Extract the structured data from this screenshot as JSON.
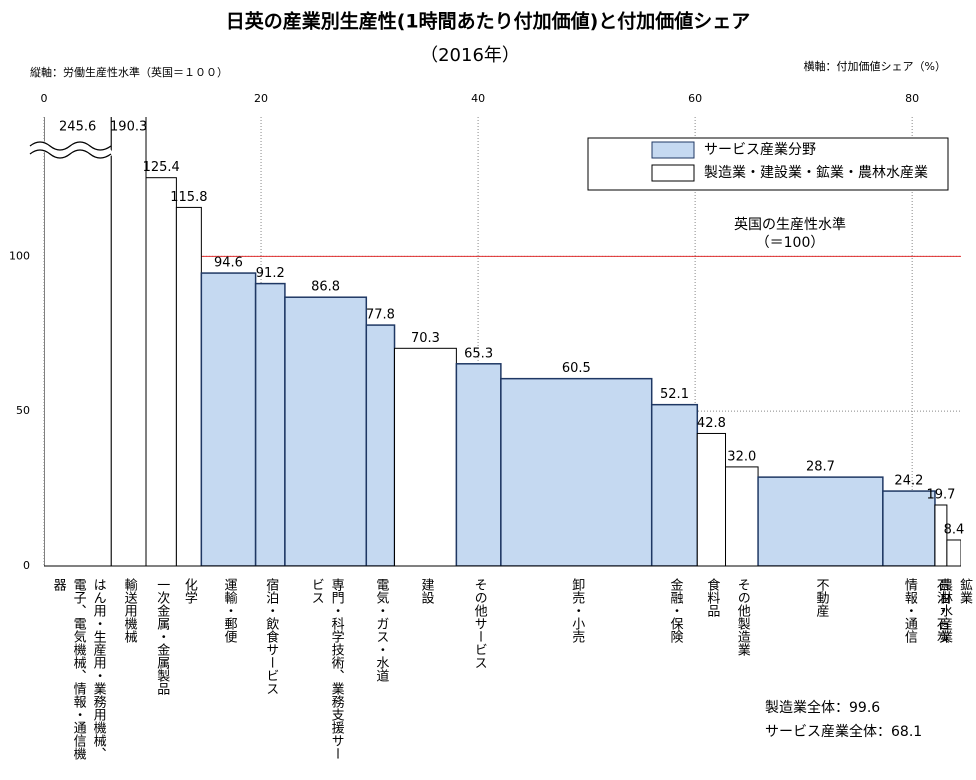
{
  "chart_data": {
    "type": "variwide-bar",
    "title": "日英の産業別生産性(1時間あたり付加価値)と付加価値シェア",
    "subtitle": "（2016年）",
    "y_label": "縦軸：労働生産性水準（英国＝１００）",
    "x_label": "横軸：付加価値シェア（%）",
    "categories": [
      "はん用・生産用・業務用機械、電子、電気機械、情報・通信機器",
      "輸送用機械",
      "一次金属・金属製品",
      "化学",
      "運輸・郵便",
      "宿泊・飲食サービス",
      "専門・科学技術、業務支援サービス",
      "電気・ガス・水道",
      "建設",
      "その他サービス",
      "卸売・小売",
      "金融・保険",
      "食料品",
      "その他製造業",
      "不動産",
      "情報・通信",
      "石油・石炭",
      "鉱業\n農林水産業"
    ],
    "values": [
      245.6,
      190.3,
      125.4,
      115.8,
      94.6,
      91.2,
      86.8,
      77.8,
      70.3,
      65.3,
      60.5,
      52.1,
      42.8,
      32.0,
      28.7,
      24.2,
      19.7,
      8.4
    ],
    "value_labels": [
      "245.6",
      "190.3",
      "125.4",
      "115.8",
      "94.6",
      "91.2",
      "86.8",
      "77.8",
      "70.3",
      "65.3",
      "60.5",
      "52.1",
      "42.8",
      "32.0",
      "28.7",
      "24.2",
      "19.7",
      "8.4"
    ],
    "widths": [
      6.2,
      3.2,
      2.8,
      2.3,
      5.0,
      2.7,
      7.5,
      2.6,
      5.7,
      4.1,
      13.9,
      4.2,
      2.6,
      3.0,
      11.5,
      4.8,
      1.1,
      1.3
    ],
    "group": [
      1,
      1,
      1,
      1,
      0,
      0,
      0,
      0,
      1,
      0,
      0,
      0,
      1,
      1,
      0,
      0,
      1,
      1
    ],
    "series": [
      {
        "name": "サービス産業分野",
        "color": "#c5d9f1",
        "edge": "#1f3864"
      },
      {
        "name": "製造業・建設業・鉱業・農林水産業",
        "color": "#ffffff",
        "edge": "#000000"
      }
    ],
    "xlim": [
      0,
      84.5
    ],
    "xticks": [
      0,
      20,
      40,
      60,
      80
    ],
    "ylim": [
      0,
      145
    ],
    "yticks": [
      0,
      50,
      100
    ],
    "grid": true,
    "ref_line": 100,
    "ref_color": "#e03030",
    "ref_label": [
      "英国の生産性水準",
      "（＝100）"
    ],
    "notes": [
      "製造業全体：99.6",
      "サービス産業全体：68.1"
    ]
  }
}
